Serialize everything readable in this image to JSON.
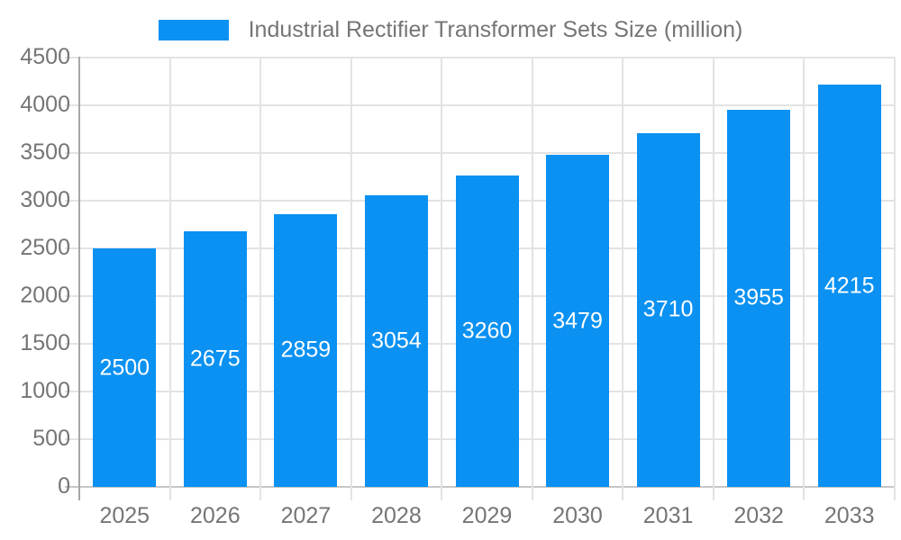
{
  "chart_data": {
    "type": "bar",
    "title": "Industrial Rectifier Transformer Sets Size (million)",
    "categories": [
      "2025",
      "2026",
      "2027",
      "2028",
      "2029",
      "2030",
      "2031",
      "2032",
      "2033"
    ],
    "values": [
      2500,
      2675,
      2859,
      3054,
      3260,
      3479,
      3710,
      3955,
      4215
    ],
    "bar_value_labels": [
      "2500",
      "2675",
      "2859",
      "3054",
      "3260",
      "3479",
      "3710",
      "3955",
      "4215"
    ],
    "xlabel": "",
    "ylabel": "",
    "ylim": [
      0,
      4500
    ],
    "yticks": [
      0,
      500,
      1000,
      1500,
      2000,
      2500,
      3000,
      3500,
      4000,
      4500
    ],
    "grid": true,
    "legend_position": "top",
    "colors": {
      "bar": "#0A91F2",
      "bar_value_text": "#FFFFFF",
      "axis_text": "#757575",
      "gridline": "#E3E3E3",
      "zero_line": "#C6C6C6",
      "axis_line": "#A6A6A6",
      "background": "#FFFFFF"
    }
  }
}
